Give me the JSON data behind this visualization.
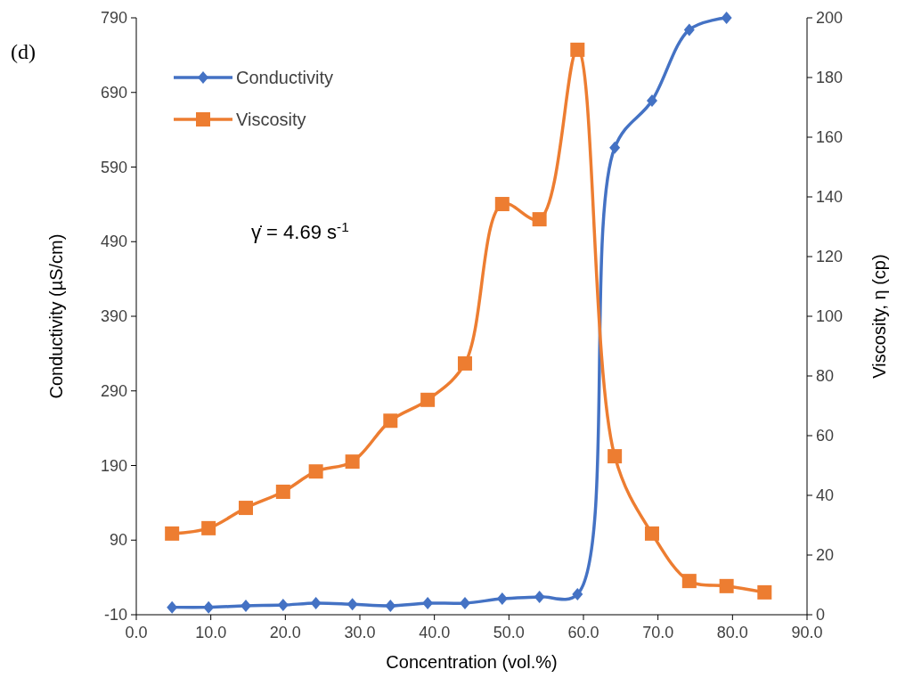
{
  "chart_data": {
    "type": "line",
    "xlabel": "Concentration (vol.%)",
    "ylabel": "Conductivity (µS/cm)",
    "y2label": "Viscosity, η (cp)",
    "annotations": [
      "(d)",
      "γ̇ = 4.69 s$^{-1}$"
    ],
    "xlim": [
      0,
      90
    ],
    "xticks": [
      {
        "value": 0,
        "label": "0.0"
      },
      {
        "value": 10,
        "label": "10.0"
      },
      {
        "value": 20,
        "label": "20.0"
      },
      {
        "value": 30,
        "label": "30.0"
      },
      {
        "value": 40,
        "label": "40.0"
      },
      {
        "value": 50,
        "label": "50.0"
      },
      {
        "value": 60,
        "label": "60.0"
      },
      {
        "value": 70,
        "label": "70.0"
      },
      {
        "value": 80,
        "label": "80.0"
      },
      {
        "value": 90,
        "label": "90.0"
      }
    ],
    "ylim": [
      -10,
      790
    ],
    "yticks": [
      -10,
      90,
      190,
      290,
      390,
      490,
      590,
      690,
      790
    ],
    "y2lim": [
      0,
      200
    ],
    "y2ticks": [
      0,
      20,
      40,
      60,
      80,
      100,
      120,
      140,
      160,
      180,
      200
    ],
    "grid": false,
    "legend": "top left",
    "line_style": "solid",
    "series": [
      {
        "name": "Conductivity",
        "color": "#4472c4",
        "marker": "diamond",
        "x": [
          4.8,
          9.7,
          14.7,
          19.7,
          24.1,
          29.0,
          34.1,
          39.1,
          44.1,
          49.1,
          54.1,
          59.2,
          64.2,
          69.2,
          74.2,
          79.2
        ],
        "values": [
          0,
          0,
          2,
          3,
          5.5,
          4,
          2,
          5.5,
          5.5,
          11.5,
          14,
          17.5,
          616,
          679,
          774,
          790
        ]
      },
      {
        "name": "Viscosity",
        "color": "#ed7d31",
        "marker": "square",
        "axis": "y2",
        "x": [
          4.8,
          9.7,
          14.7,
          19.7,
          24.1,
          29.0,
          34.1,
          39.1,
          44.1,
          49.1,
          54.1,
          59.2,
          64.2,
          69.2,
          74.2,
          79.2,
          84.3
        ],
        "values": [
          27.2,
          29,
          35.8,
          41.2,
          48,
          51.3,
          65,
          72,
          84.2,
          137.6,
          132.5,
          189.3,
          53.1,
          27.2,
          11.3,
          9.6,
          7.5
        ]
      }
    ]
  }
}
